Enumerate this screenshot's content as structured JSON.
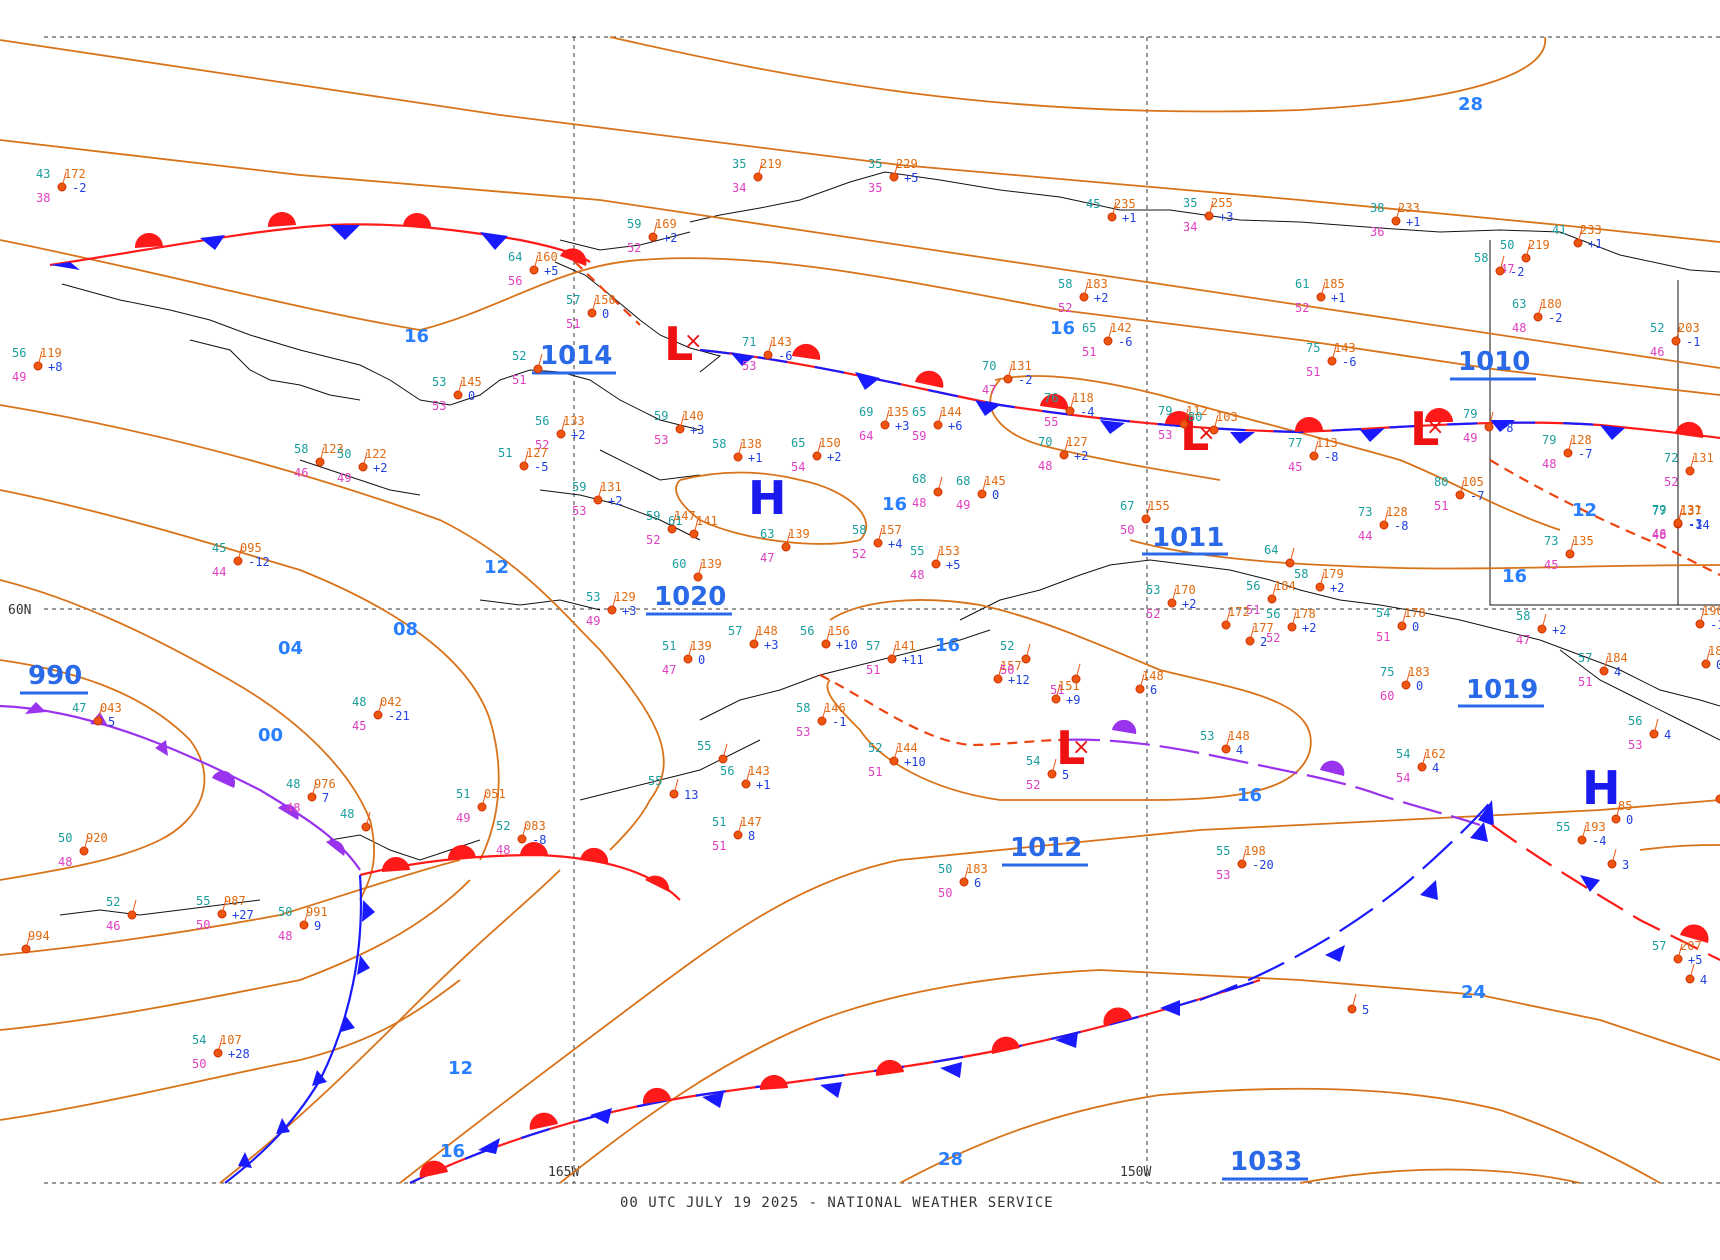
{
  "caption": "00 UTC JULY 19 2025 - NATIONAL WEATHER SERVICE",
  "grid": {
    "lat_label": "60N",
    "lon_labels": [
      "165W",
      "150W"
    ]
  },
  "isobar_labels": [
    "28",
    "16",
    "16",
    "12",
    "08",
    "04",
    "00",
    "16",
    "16",
    "12",
    "16",
    "12",
    "24",
    "28",
    "16"
  ],
  "pressure_centers": [
    {
      "type": "L",
      "value": "1014"
    },
    {
      "type": "L",
      "value": "1010"
    },
    {
      "type": "L",
      "value": "1011"
    },
    {
      "type": "H",
      "value": "1020"
    },
    {
      "type": "L",
      "value": "990"
    },
    {
      "type": "L",
      "value": "1012"
    },
    {
      "type": "H",
      "value": "1019"
    },
    {
      "type": "H",
      "value": "1033"
    }
  ],
  "colors": {
    "isobar": "#d9731a",
    "warm_front": "#ff1a1a",
    "cold_front": "#1a1aff",
    "occluded": "#9933ee",
    "trough": "#ee4411",
    "label": "#2a7fff",
    "H": "#1a1aee",
    "L": "#ee1111"
  },
  "stations": [
    {
      "t": "43",
      "p": "172",
      "d": "38",
      "tend": "-2"
    },
    {
      "t": "35",
      "p": "219",
      "d": "34",
      "tend": ""
    },
    {
      "t": "35",
      "p": "229",
      "d": "35",
      "tend": "+5"
    },
    {
      "t": "45",
      "p": "235",
      "d": "",
      "tend": "+1"
    },
    {
      "t": "35",
      "p": "255",
      "d": "34",
      "tend": "+3"
    },
    {
      "t": "38",
      "p": "233",
      "d": "36",
      "tend": "+1"
    },
    {
      "t": "59",
      "p": "169",
      "d": "52",
      "tend": "+2"
    },
    {
      "t": "64",
      "p": "160",
      "d": "56",
      "tend": "+5"
    },
    {
      "t": "57",
      "p": "150",
      "d": "51",
      "tend": "0"
    },
    {
      "t": "52",
      "p": "",
      "d": "51",
      "tend": ""
    },
    {
      "t": "71",
      "p": "143",
      "d": "53",
      "tend": "-6"
    },
    {
      "t": "53",
      "p": "145",
      "d": "53",
      "tend": "0"
    },
    {
      "t": "56",
      "p": "119",
      "d": "49",
      "tend": "+8"
    },
    {
      "t": "58",
      "p": "183",
      "d": "52",
      "tend": "+2"
    },
    {
      "t": "61",
      "p": "185",
      "d": "52",
      "tend": "+1"
    },
    {
      "t": "65",
      "p": "142",
      "d": "51",
      "tend": "-6"
    },
    {
      "t": "75",
      "p": "143",
      "d": "51",
      "tend": "-6"
    },
    {
      "t": "70",
      "p": "131",
      "d": "47",
      "tend": "-2"
    },
    {
      "t": "76",
      "p": "118",
      "d": "55",
      "tend": "-4"
    },
    {
      "t": "79",
      "p": "112",
      "d": "53",
      "tend": ""
    },
    {
      "t": "80",
      "p": "103",
      "d": "",
      "tend": ""
    },
    {
      "t": "77",
      "p": "113",
      "d": "45",
      "tend": "-8"
    },
    {
      "t": "79",
      "p": "",
      "d": "49",
      "tend": "-8"
    },
    {
      "t": "79",
      "p": "128",
      "d": "48",
      "tend": "-7"
    },
    {
      "t": "72",
      "p": "131",
      "d": "52",
      "tend": ""
    },
    {
      "t": "56",
      "p": "133",
      "d": "52",
      "tend": "+2"
    },
    {
      "t": "59",
      "p": "140",
      "d": "53",
      "tend": "+3"
    },
    {
      "t": "58",
      "p": "138",
      "d": "",
      "tend": "+1"
    },
    {
      "t": "65",
      "p": "150",
      "d": "54",
      "tend": "+2"
    },
    {
      "t": "69",
      "p": "135",
      "d": "64",
      "tend": "+3"
    },
    {
      "t": "65",
      "p": "144",
      "d": "59",
      "tend": "+6"
    },
    {
      "t": "70",
      "p": "127",
      "d": "48",
      "tend": "+2"
    },
    {
      "t": "58",
      "p": "123",
      "d": "46",
      "tend": ""
    },
    {
      "t": "50",
      "p": "122",
      "d": "49",
      "tend": "+2"
    },
    {
      "t": "51",
      "p": "127",
      "d": "",
      "tend": "-5"
    },
    {
      "t": "59",
      "p": "131",
      "d": "53",
      "tend": "+2"
    },
    {
      "t": "59",
      "p": "147",
      "d": "52",
      "tend": ""
    },
    {
      "t": "61",
      "p": "141",
      "d": "",
      "tend": ""
    },
    {
      "t": "68",
      "p": "",
      "d": "48",
      "tend": ""
    },
    {
      "t": "68",
      "p": "145",
      "d": "49",
      "tend": "0"
    },
    {
      "t": "58",
      "p": "157",
      "d": "52",
      "tend": "+4"
    },
    {
      "t": "63",
      "p": "139",
      "d": "47",
      "tend": ""
    },
    {
      "t": "60",
      "p": "139",
      "d": "",
      "tend": ""
    },
    {
      "t": "55",
      "p": "153",
      "d": "48",
      "tend": "+5"
    },
    {
      "t": "45",
      "p": "095",
      "d": "44",
      "tend": "-12"
    },
    {
      "t": "53",
      "p": "129",
      "d": "49",
      "tend": "+3"
    },
    {
      "t": "57",
      "p": "148",
      "d": "",
      "tend": "+3"
    },
    {
      "t": "56",
      "p": "156",
      "d": "",
      "tend": "+10"
    },
    {
      "t": "51",
      "p": "139",
      "d": "47",
      "tend": "0"
    },
    {
      "t": "57",
      "p": "141",
      "d": "51",
      "tend": "+11"
    },
    {
      "t": "67",
      "p": "155",
      "d": "50",
      "tend": ""
    },
    {
      "t": "73",
      "p": "128",
      "d": "44",
      "tend": "-8"
    },
    {
      "t": "80",
      "p": "105",
      "d": "51",
      "tend": "-7"
    },
    {
      "t": "73",
      "p": "135",
      "d": "45",
      "tend": ""
    },
    {
      "t": "77",
      "p": "137",
      "d": "48",
      "tend": "-14"
    },
    {
      "t": "79",
      "p": "131",
      "d": "46",
      "tend": "-3"
    },
    {
      "t": "50",
      "p": "219",
      "d": "47",
      "tend": ""
    },
    {
      "t": "58",
      "p": "",
      "d": "",
      "tend": "-2"
    },
    {
      "t": "63",
      "p": "180",
      "d": "48",
      "tend": "-2"
    },
    {
      "t": "41",
      "p": "233",
      "d": "",
      "tend": "+1"
    },
    {
      "t": "52",
      "p": "203",
      "d": "46",
      "tend": "-1"
    },
    {
      "t": "53",
      "p": "170",
      "d": "52",
      "tend": "+2"
    },
    {
      "t": "56",
      "p": "184",
      "d": "51",
      "tend": ""
    },
    {
      "t": "58",
      "p": "179",
      "d": "",
      "tend": "+2"
    },
    {
      "t": "56",
      "p": "178",
      "d": "52",
      "tend": "+2"
    },
    {
      "t": "54",
      "p": "178",
      "d": "51",
      "tend": "0"
    },
    {
      "t": "64",
      "p": "",
      "d": "",
      "tend": ""
    },
    {
      "t": "",
      "p": "172",
      "d": "",
      "tend": ""
    },
    {
      "t": "",
      "p": "177",
      "d": "",
      "tend": "2"
    },
    {
      "t": "75",
      "p": "183",
      "d": "60",
      "tend": "0"
    },
    {
      "t": "58",
      "p": "",
      "d": "47",
      "tend": "+2"
    },
    {
      "t": "57",
      "p": "184",
      "d": "51",
      "tend": "4"
    },
    {
      "t": "47",
      "p": "043",
      "d": "",
      "tend": "5"
    },
    {
      "t": "48",
      "p": "042",
      "d": "45",
      "tend": "-21"
    },
    {
      "t": "48",
      "p": "976",
      "d": "48",
      "tend": "7"
    },
    {
      "t": "48",
      "p": "",
      "d": "",
      "tend": ""
    },
    {
      "t": "51",
      "p": "051",
      "d": "49",
      "tend": ""
    },
    {
      "t": "52",
      "p": "083",
      "d": "48",
      "tend": "-8"
    },
    {
      "t": "50",
      "p": "920",
      "d": "48",
      "tend": ""
    },
    {
      "t": "55",
      "p": "987",
      "d": "50",
      "tend": "+27"
    },
    {
      "t": "52",
      "p": "",
      "d": "46",
      "tend": ""
    },
    {
      "t": "50",
      "p": "991",
      "d": "48",
      "tend": "9"
    },
    {
      "t": "",
      "p": "994",
      "d": "",
      "tend": ""
    },
    {
      "t": "54",
      "p": "107",
      "d": "50",
      "tend": "+28"
    },
    {
      "t": "58",
      "p": "146",
      "d": "53",
      "tend": "-1"
    },
    {
      "t": "52",
      "p": "144",
      "d": "51",
      "tend": "+10"
    },
    {
      "t": "55",
      "p": "",
      "d": "",
      "tend": ""
    },
    {
      "t": "55",
      "p": "",
      "d": "",
      "tend": "13"
    },
    {
      "t": "56",
      "p": "143",
      "d": "",
      "tend": "+1"
    },
    {
      "t": "51",
      "p": "147",
      "d": "51",
      "tend": "8"
    },
    {
      "t": "",
      "p": "157",
      "d": "",
      "tend": "+12"
    },
    {
      "t": "52",
      "p": "",
      "d": "50",
      "tend": ""
    },
    {
      "t": "",
      "p": "",
      "d": "51",
      "tend": ""
    },
    {
      "t": "",
      "p": "151",
      "d": "",
      "tend": "+9"
    },
    {
      "t": "",
      "p": "148",
      "d": "",
      "tend": "6"
    },
    {
      "t": "54",
      "p": "",
      "d": "52",
      "tend": "5"
    },
    {
      "t": "53",
      "p": "148",
      "d": "",
      "tend": "4"
    },
    {
      "t": "54",
      "p": "162",
      "d": "54",
      "tend": "4"
    },
    {
      "t": "50",
      "p": "183",
      "d": "50",
      "tend": "6"
    },
    {
      "t": "55",
      "p": "198",
      "d": "53",
      "tend": "-20"
    },
    {
      "t": "55",
      "p": "193",
      "d": "",
      "tend": "-4"
    },
    {
      "t": "",
      "p": "",
      "d": "",
      "tend": "3"
    },
    {
      "t": "",
      "p": "85",
      "d": "",
      "tend": "0"
    },
    {
      "t": "57",
      "p": "207",
      "d": "",
      "tend": "+5"
    },
    {
      "t": "",
      "p": "",
      "d": "",
      "tend": "4"
    },
    {
      "t": "",
      "p": "",
      "d": "",
      "tend": "5"
    },
    {
      "t": "56",
      "p": "",
      "d": "53",
      "tend": "4"
    },
    {
      "t": "",
      "p": "190",
      "d": "",
      "tend": "-10"
    },
    {
      "t": "",
      "p": "187",
      "d": "",
      "tend": "0"
    },
    {
      "t": "",
      "p": "",
      "d": "",
      "tend": "+9"
    }
  ]
}
